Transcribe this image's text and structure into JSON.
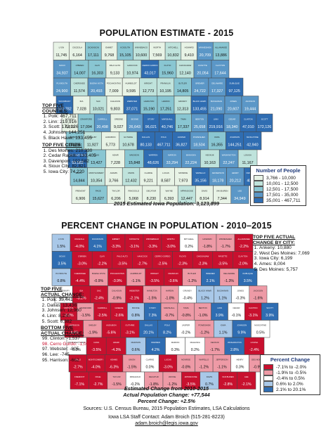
{
  "top_map": {
    "title": "POPULATION ESTIMATE - 2015",
    "caption": "2015 Estimated Iowa Population: 3,123,899",
    "legend": {
      "title": "Number of People",
      "items": [
        {
          "label": "3,766 - 10,000",
          "color": "#e8f3e6"
        },
        {
          "label": "10,001 - 12,500",
          "color": "#bfe3dc"
        },
        {
          "label": "12,501 - 17,500",
          "color": "#89c6d2"
        },
        {
          "label": "17,501 - 35,000",
          "color": "#5b97c7"
        },
        {
          "label": "35,001 - 467,711",
          "color": "#2f6db2"
        }
      ]
    },
    "top_counties": {
      "heading_line1": "TOP FIVE",
      "heading_line2": "COUNTIES:",
      "items": [
        "Polk: 467,711",
        "Linn: 219,916",
        "Scott: 172,126",
        "Johnson: 144,251",
        "Black Hawk: 133,455"
      ]
    },
    "top_cities": {
      "heading": "TOP FIVE CITIES:",
      "items": [
        "Des Moines: 210,330",
        "Cedar Rapids: 130,405",
        "Davenport: 102,582",
        "Sioux City: 82,821",
        "Iowa City: 74,220"
      ]
    },
    "rows": [
      [
        [
          "Lyon",
          "11,745",
          0
        ],
        [
          "Osceola",
          "6,164",
          0
        ],
        [
          "Dickinson",
          "17,111",
          2
        ],
        [
          "Emmet",
          "9,768",
          0
        ],
        [
          "Kossuth",
          "15,105",
          2
        ],
        [
          "Winnebago",
          "10,600",
          1
        ],
        [
          "Worth",
          "7,569",
          0
        ],
        [
          "Mitchell",
          "10,832",
          1
        ],
        [
          "Howard",
          "9,410",
          0
        ],
        [
          "Winneshiek",
          "20,709",
          3
        ],
        [
          "Allamakee",
          "13,886",
          2
        ]
      ],
      [
        [
          "Sioux",
          "34,937",
          3
        ],
        [
          "O'Brien",
          "14,007",
          2
        ],
        [
          "Clay",
          "16,303",
          2
        ],
        [
          "Palo Alto",
          "9,133",
          0
        ],
        [
          "Hancock",
          "10,974",
          1
        ],
        [
          "Cerro Gordo",
          "43,017",
          4
        ],
        [
          "Floyd",
          "15,960",
          2
        ],
        [
          "Chickasaw",
          "12,140",
          1
        ],
        [
          "Fayette",
          "20,054",
          3
        ],
        [
          "Clayton",
          "17,644",
          3
        ]
      ],
      [
        [
          "Plymouth",
          "24,900",
          3
        ],
        [
          "Cherokee",
          "11,574",
          1
        ],
        [
          "Buena Vista",
          "20,493",
          3
        ],
        [
          "Pocahontas",
          "7,009",
          0
        ],
        [
          "Humboldt",
          "9,595",
          0
        ],
        [
          "Wright",
          "12,773",
          1
        ],
        [
          "Franklin",
          "10,195",
          1
        ],
        [
          "Butler",
          "14,805",
          2
        ],
        [
          "Bremer",
          "24,722",
          3
        ],
        [
          "Delaware",
          "17,327",
          3
        ],
        [
          "Dubuque",
          "97,125",
          4
        ]
      ],
      [
        [
          "Woodbury",
          "102,782",
          4
        ],
        [
          "Ida",
          "7,028",
          0
        ],
        [
          "Sac",
          "10,021",
          1
        ],
        [
          "Calhoun",
          "9,803",
          0
        ],
        [
          "Webster",
          "37,071",
          4
        ],
        [
          "Hamilton",
          "15,190",
          2
        ],
        [
          "Hardin",
          "17,251",
          2
        ],
        [
          "Grundy",
          "12,313",
          1
        ],
        [
          "Black Hawk",
          "133,455",
          4
        ],
        [
          "Buchanan",
          "21,090",
          3
        ],
        [
          "Jones",
          "20,607",
          3
        ],
        [
          "Jackson",
          "19,444",
          3
        ]
      ],
      [
        [
          "Monona",
          "8,879",
          0
        ],
        [
          "Crawford",
          "17,094",
          2
        ],
        [
          "Carroll",
          "20,498",
          3
        ],
        [
          "Greene",
          "9,027",
          0
        ],
        [
          "Boone",
          "26,643",
          3
        ],
        [
          "Story",
          "96,021",
          4
        ],
        [
          "Marshall",
          "40,746",
          4
        ],
        [
          "Tama",
          "17,337",
          2
        ],
        [
          "Benton",
          "25,658",
          3
        ],
        [
          "Linn",
          "219,916",
          4
        ],
        [
          "Cedar",
          "18,340",
          3
        ],
        [
          "Clinton",
          "47,010",
          4
        ],
        [
          "Scott",
          "172,126",
          4
        ]
      ],
      [
        [
          "Harrison",
          "14,265",
          2
        ],
        [
          "Shelby",
          "11,927",
          1
        ],
        [
          "Audubon",
          "5,773",
          0
        ],
        [
          "Guthrie",
          "10,678",
          1
        ],
        [
          "Dallas",
          "80,133",
          4
        ],
        [
          "Polk",
          "467,711",
          4
        ],
        [
          "Jasper",
          "36,827",
          4
        ],
        [
          "Poweshiek",
          "18,504",
          3
        ],
        [
          "Iowa",
          "16,355",
          2
        ],
        [
          "Johnson",
          "144,251",
          4
        ],
        [
          "Muscatine",
          "42,940",
          4
        ]
      ],
      [
        [
          "Pottawattamie",
          "93,582",
          4
        ],
        [
          "Cass",
          "13,427",
          2
        ],
        [
          "Adair",
          "7,228",
          0
        ],
        [
          "Madison",
          "15,848",
          2
        ],
        [
          "Warren",
          "48,626",
          4
        ],
        [
          "Marion",
          "33,294",
          3
        ],
        [
          "Mahaska",
          "22,224",
          3
        ],
        [
          "Keokuk",
          "10,163",
          1
        ],
        [
          "Washington",
          "22,247",
          3
        ],
        [
          "Louisa",
          "11,167",
          1
        ]
      ],
      [
        [
          "Mills",
          "14,844",
          2
        ],
        [
          "Montgomery",
          "10,354",
          1
        ],
        [
          "Adams",
          "3,766",
          0
        ],
        [
          "Union",
          "12,432",
          1
        ],
        [
          "Clarke",
          "9,221",
          0
        ],
        [
          "Lucas",
          "8,587",
          0
        ],
        [
          "Monroe",
          "7,973",
          0
        ],
        [
          "Wapello",
          "35,156",
          4
        ],
        [
          "Jefferson",
          "18,178",
          3
        ],
        [
          "Henry",
          "20,212",
          3
        ],
        [
          "Des Moines",
          "40,055",
          4
        ]
      ],
      [
        [
          "Fremont",
          "6,906",
          0
        ],
        [
          "Page",
          "15,627",
          2
        ],
        [
          "Taylor",
          "6,206",
          0
        ],
        [
          "Ringgold",
          "5,068",
          0
        ],
        [
          "Decatur",
          "8,230",
          0
        ],
        [
          "Wayne",
          "6,393",
          0
        ],
        [
          "Appanoose",
          "12,447",
          1
        ],
        [
          "Davis",
          "8,914",
          0
        ],
        [
          "Van Buren",
          "7,344",
          0
        ],
        [
          "Lee",
          "34,949",
          3
        ]
      ]
    ]
  },
  "bottom_map": {
    "title": "PERCENT CHANGE IN POPULATION - 2010–2015",
    "legend": {
      "title": "Percent Change",
      "items": [
        {
          "label": "-7.1% to -2.0%",
          "color": "#c8102e"
        },
        {
          "label": "-1.9% to -0.5%",
          "color": "#ee9aa6"
        },
        {
          "label": "-0.4% to 0.5%",
          "color": "#ffffff"
        },
        {
          "label": "0.6% to 2.0%",
          "color": "#a9c8e8"
        },
        {
          "label": "2.1% to 20.1%",
          "color": "#2f6db2"
        }
      ]
    },
    "top_cities": {
      "heading_line1": "TOP FIVE ACTUAL",
      "heading_line2": "CHANGE BY CITY:",
      "items": [
        "Ankeny: 10,880",
        "West Des Moines: 7,069",
        "Iowa City: 6,199",
        "Ames: 8,004",
        "Des Moines: 5,757"
      ]
    },
    "top_change": {
      "heading_line1": "TOP FIVE",
      "heading_line2": "ACTUAL CHANGE:",
      "items": [
        "Polk: 35,441",
        "Dallas: 13,436",
        "Johnson: 12,960",
        "Linn: 8,230",
        "Scott: 6,382"
      ]
    },
    "bottom_change": {
      "heading_line1": "BOTTOM FIVE",
      "heading_line2": "ACTUAL CHANGE:",
      "items": [
        "99. Clinton: -1,537",
        "98. Cerro Gordo: -1,097",
        "97. Webster: -805",
        "96. Lee: -745",
        "95. Harrison: -662"
      ]
    },
    "caption_lines": [
      "Estimated Change from 2010-2015",
      "Actual Population Change: +77,544",
      "Percent Change: +2.5%"
    ],
    "rows": [
      [
        [
          "Lyon",
          "1.5%",
          3
        ],
        [
          "Osceola",
          "-4.0%",
          0
        ],
        [
          "Dickinson",
          "4.1%",
          4
        ],
        [
          "Emmet",
          "-3.3%",
          0
        ],
        [
          "Kossuth",
          "-3.1%",
          0
        ],
        [
          "Winnebago",
          "-3.3%",
          0
        ],
        [
          "Worth",
          "-3.0%",
          0
        ],
        [
          "Mitchell",
          "0.2%",
          2
        ],
        [
          "Howard",
          "-1.8%",
          1
        ],
        [
          "Winneshiek",
          "-1.7%",
          1
        ],
        [
          "Allamakee",
          "-2.2%",
          0
        ]
      ],
      [
        [
          "Sioux",
          "3.5%",
          4
        ],
        [
          "O'Brien",
          "-3.0%",
          0
        ],
        [
          "Clay",
          "-2.2%",
          0
        ],
        [
          "Palo Alto",
          "-3.5%",
          0
        ],
        [
          "Hancock",
          "-2.7%",
          0
        ],
        [
          "Cerro Gordo",
          "-2.5%",
          0
        ],
        [
          "Floyd",
          "-2.3%",
          0
        ],
        [
          "Chickasaw",
          "-2.3%",
          0
        ],
        [
          "Fayette",
          "-3.5%",
          0
        ],
        [
          "Clayton",
          "-2.0%",
          0
        ]
      ],
      [
        [
          "Plymouth",
          "0.8%",
          3
        ],
        [
          "Cherokee",
          "-4.4%",
          0
        ],
        [
          "Buena Vista",
          "-0.9%",
          1
        ],
        [
          "Pocahontas",
          "-3.9%",
          0
        ],
        [
          "Humboldt",
          "-1.1%",
          1
        ],
        [
          "Wright",
          "-3.5%",
          0
        ],
        [
          "Franklin",
          "-3.6%",
          0
        ],
        [
          "Butler",
          "-1.2%",
          1
        ],
        [
          "Bremer",
          "2.1%",
          4
        ],
        [
          "Delaware",
          "-1.3%",
          1
        ],
        [
          "Dubuque",
          "3.5%",
          4
        ]
      ],
      [
        [
          "Woodbury",
          "0.2%",
          2
        ],
        [
          "Ida",
          "-3.2%",
          0
        ],
        [
          "Sac",
          "-2.4%",
          0
        ],
        [
          "Calhoun",
          "-0.9%",
          1
        ],
        [
          "Webster",
          "-2.1%",
          0
        ],
        [
          "Hamilton",
          "-1.5%",
          1
        ],
        [
          "Hardin",
          "-1.8%",
          1
        ],
        [
          "Grundy",
          "-0.4%",
          2
        ],
        [
          "Black Hawk",
          "1.2%",
          3
        ],
        [
          "Buchanan",
          "1.1%",
          3
        ],
        [
          "Jones",
          "-0.3%",
          2
        ],
        [
          "Jackson",
          "-1.6%",
          1
        ]
      ],
      [
        [
          "Monona",
          "-3.3%",
          0
        ],
        [
          "Crawford",
          "-1.5%",
          1
        ],
        [
          "Carroll",
          "-2.5%",
          0
        ],
        [
          "Greene",
          "-2.6%",
          0
        ],
        [
          "Boone",
          "0.8%",
          3
        ],
        [
          "Story",
          "7.3%",
          4
        ],
        [
          "Marshall",
          "-0.7%",
          1
        ],
        [
          "Tama",
          "-0.8%",
          1
        ],
        [
          "Benton",
          "-1.0%",
          1
        ],
        [
          "Linn",
          "3.9%",
          4
        ],
        [
          "Cedar",
          "-0.1%",
          2
        ],
        [
          "Clinton",
          "-3.1%",
          0
        ],
        [
          "Scott",
          "3.9%",
          4
        ]
      ],
      [
        [
          "Harrison",
          "-4.4%",
          0
        ],
        [
          "Shelby",
          "-1.9%",
          1
        ],
        [
          "Audubon",
          "-5.6%",
          0
        ],
        [
          "Guthrie",
          "-3.1%",
          0
        ],
        [
          "Dallas",
          "20.1%",
          4
        ],
        [
          "Polk",
          "8.2%",
          4
        ],
        [
          "Jasper",
          "-0.2%",
          2
        ],
        [
          "Poweshiek",
          "-1.2%",
          1
        ],
        [
          "Iowa",
          "1.1%",
          3
        ],
        [
          "Johnson",
          "9.9%",
          4
        ],
        [
          "Muscatine",
          "0.5%",
          2
        ]
      ],
      [
        [
          "Pottawattamie",
          "0.3%",
          2
        ],
        [
          "Cass",
          "-3.5%",
          0
        ],
        [
          "Adair",
          "-4.3%",
          0
        ],
        [
          "Madison",
          "0.6%",
          3
        ],
        [
          "Warren",
          "4.2%",
          4
        ],
        [
          "Marion",
          "0.3%",
          2
        ],
        [
          "Mahaska",
          "0.2%",
          2
        ],
        [
          "Keokuk",
          "-1.7%",
          1
        ],
        [
          "Washington",
          "2.8%",
          4
        ],
        [
          "Louisa",
          "-2.4%",
          0
        ]
      ],
      [
        [
          "Mills",
          "-2.7%",
          0
        ],
        [
          "Montgomery",
          "-4.0%",
          0
        ],
        [
          "Adams",
          "-6.3%",
          0
        ],
        [
          "Union",
          "-1.5%",
          1
        ],
        [
          "Clarke",
          "0.0%",
          2
        ],
        [
          "Lucas",
          "-3.0%",
          0
        ],
        [
          "Monroe",
          "-0.8%",
          1
        ],
        [
          "Wapello",
          "-1.2%",
          1
        ],
        [
          "Jefferson",
          "-1.1%",
          1
        ],
        [
          "Henry",
          "0.3%",
          2
        ],
        [
          "Des Moines",
          "-0.9%",
          1
        ]
      ],
      [
        [
          "Fremont",
          "-7.1%",
          0
        ],
        [
          "Page",
          "-2.7%",
          0
        ],
        [
          "Taylor",
          "-1.5%",
          1
        ],
        [
          "Ringgold",
          "-0.2%",
          2
        ],
        [
          "Decatur",
          "-1.8%",
          1
        ],
        [
          "Wayne",
          "-1.2%",
          1
        ],
        [
          "Appanoose",
          "-3.5%",
          0
        ],
        [
          "Davis",
          "0.7%",
          3
        ],
        [
          "Van Buren",
          "-2.8%",
          0
        ],
        [
          "Lee",
          "-2.1%",
          0
        ]
      ]
    ]
  },
  "footer": {
    "sources": "Sources: U.S. Census Bureau, 2015 Population Estimates, LSA Calculations",
    "staff": "Iowa LSA Staff Contact:  Adam Broich (515-281-8223)",
    "email": "adam.broich@legis.iowa.gov"
  }
}
